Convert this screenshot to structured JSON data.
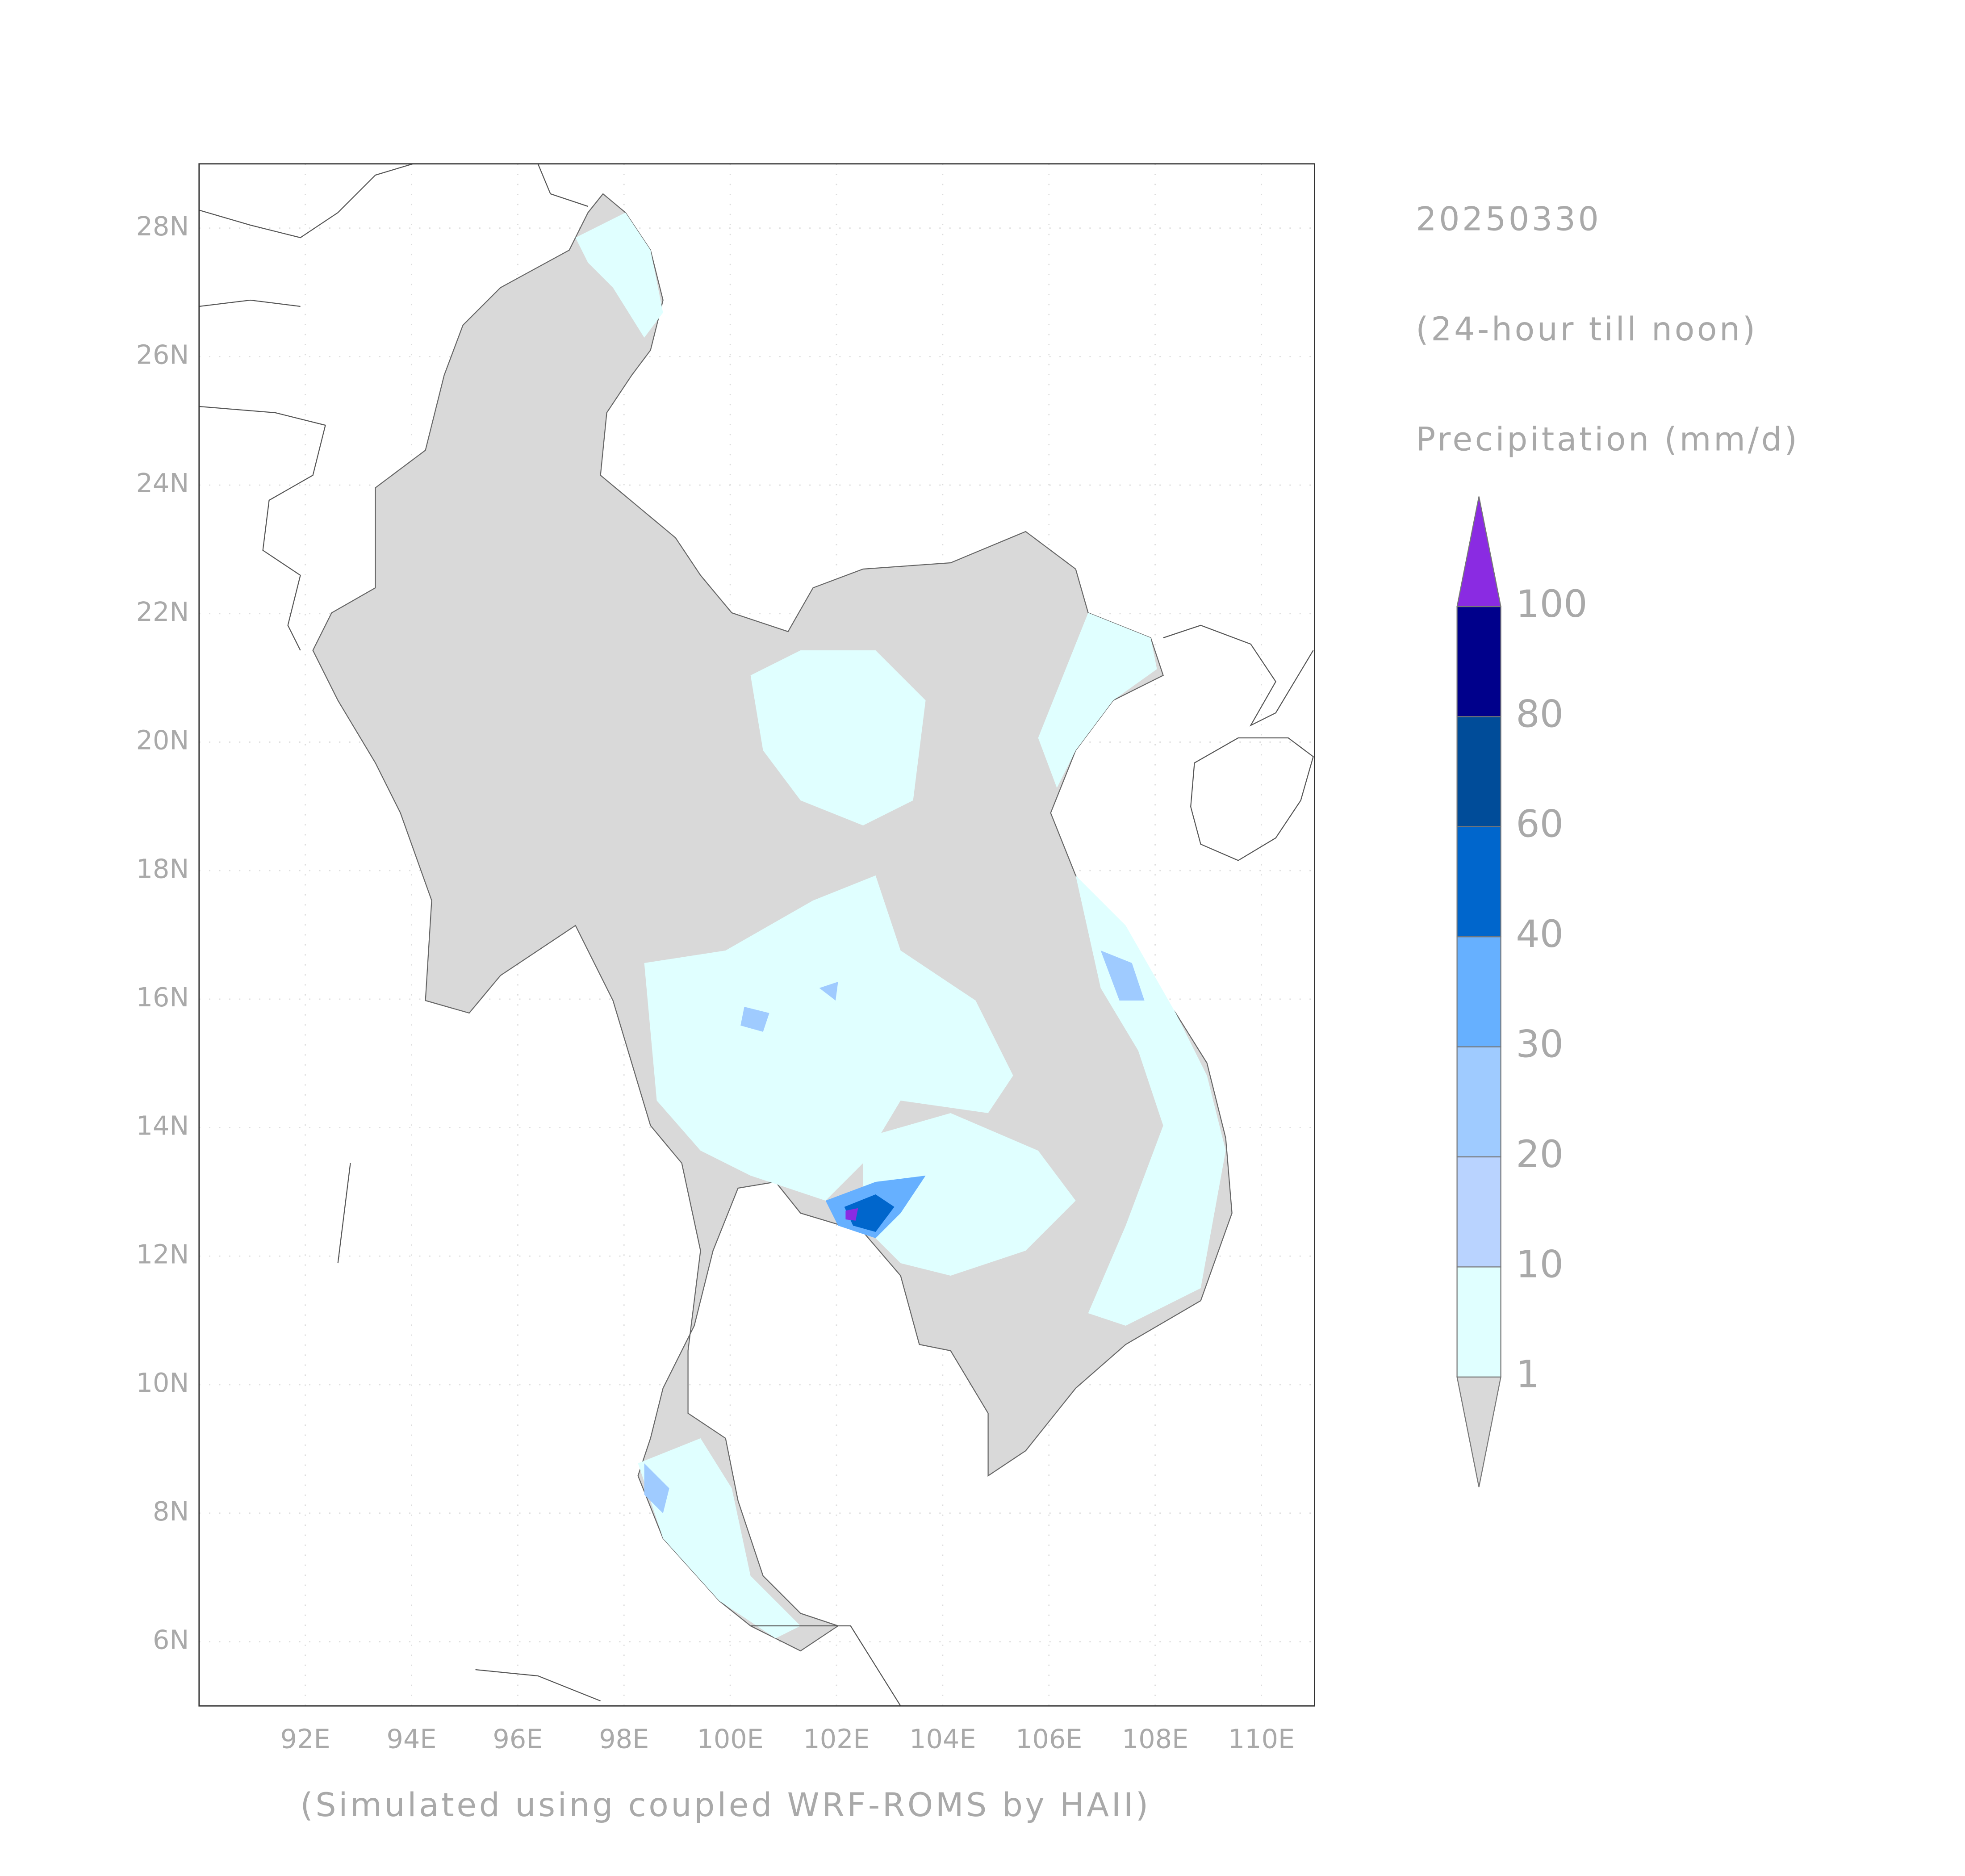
{
  "map": {
    "date": "20250330",
    "period": "(24-hour till noon)",
    "variable": "Precipitation (mm/d)",
    "credit": "(Simulated using coupled WRF-ROMS by HAII)",
    "xlim": [
      90,
      111
    ],
    "ylim": [
      5,
      29
    ],
    "xticks": [
      {
        "value": 92,
        "label": "92E"
      },
      {
        "value": 94,
        "label": "94E"
      },
      {
        "value": 96,
        "label": "96E"
      },
      {
        "value": 98,
        "label": "98E"
      },
      {
        "value": 100,
        "label": "100E"
      },
      {
        "value": 102,
        "label": "102E"
      },
      {
        "value": 104,
        "label": "104E"
      },
      {
        "value": 106,
        "label": "106E"
      },
      {
        "value": 108,
        "label": "108E"
      },
      {
        "value": 110,
        "label": "110E"
      }
    ],
    "yticks": [
      {
        "value": 28,
        "label": "28N"
      },
      {
        "value": 26,
        "label": "26N"
      },
      {
        "value": 24,
        "label": "24N"
      },
      {
        "value": 22,
        "label": "22N"
      },
      {
        "value": 20,
        "label": "20N"
      },
      {
        "value": 18,
        "label": "18N"
      },
      {
        "value": 16,
        "label": "16N"
      },
      {
        "value": 14,
        "label": "14N"
      },
      {
        "value": 12,
        "label": "12N"
      },
      {
        "value": 10,
        "label": "10N"
      },
      {
        "value": 8,
        "label": "8N"
      },
      {
        "value": 6,
        "label": "6N"
      }
    ],
    "colorbar": {
      "levels": [
        1,
        10,
        20,
        30,
        40,
        60,
        80,
        100
      ],
      "colors": [
        "#d9d9d9",
        "#e0ffff",
        "#b9d3ff",
        "#9fcbff",
        "#66b0ff",
        "#0066cc",
        "#004c99",
        "#00008b",
        "#8a2be2"
      ]
    }
  }
}
